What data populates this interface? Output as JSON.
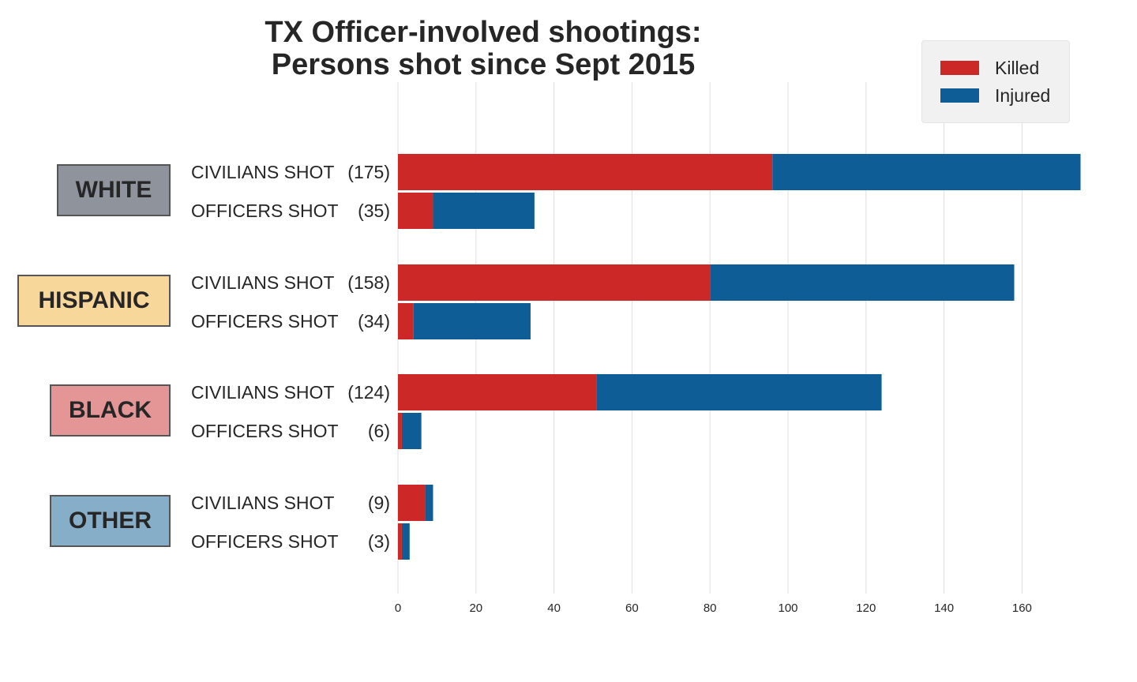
{
  "title_line1": "TX Officer-involved shootings:",
  "title_line2": "Persons shot since Sept 2015",
  "legend": [
    {
      "label": "Killed",
      "color": "#cd2828"
    },
    {
      "label": "Injured",
      "color": "#0e5d96"
    }
  ],
  "groups": [
    {
      "name": "WHITE",
      "color": "#8e939c",
      "rows": [
        {
          "label": "CIVILIANS SHOT",
          "count": "(175)"
        },
        {
          "label": "OFFICERS SHOT",
          "count": "(35)"
        }
      ]
    },
    {
      "name": "HISPANIC",
      "color": "#f7d79a",
      "rows": [
        {
          "label": "CIVILIANS SHOT",
          "count": "(158)"
        },
        {
          "label": "OFFICERS SHOT",
          "count": "(34)"
        }
      ]
    },
    {
      "name": "BLACK",
      "color": "#e49596",
      "rows": [
        {
          "label": "CIVILIANS SHOT",
          "count": "(124)"
        },
        {
          "label": "OFFICERS SHOT",
          "count": "(6)"
        }
      ]
    },
    {
      "name": "OTHER",
      "color": "#86aec9",
      "rows": [
        {
          "label": "CIVILIANS SHOT",
          "count": "(9)"
        },
        {
          "label": "OFFICERS SHOT",
          "count": "(3)"
        }
      ]
    }
  ],
  "chart_data": {
    "type": "bar",
    "orientation": "horizontal",
    "stacked": true,
    "categories": [
      "WHITE CIVILIANS SHOT",
      "WHITE OFFICERS SHOT",
      "HISPANIC CIVILIANS SHOT",
      "HISPANIC OFFICERS SHOT",
      "BLACK CIVILIANS SHOT",
      "BLACK OFFICERS SHOT",
      "OTHER CIVILIANS SHOT",
      "OTHER OFFICERS SHOT"
    ],
    "series": [
      {
        "name": "Killed",
        "color": "#cd2828",
        "values": [
          96,
          9,
          80,
          4,
          51,
          1,
          7,
          1
        ]
      },
      {
        "name": "Injured",
        "color": "#0e5d96",
        "values": [
          79,
          26,
          78,
          30,
          73,
          5,
          2,
          2
        ]
      }
    ],
    "xlim": [
      0,
      175
    ],
    "xticks": [
      0,
      20,
      40,
      60,
      80,
      100,
      120,
      140,
      160
    ],
    "grid": true,
    "legend_position": "top-right"
  }
}
